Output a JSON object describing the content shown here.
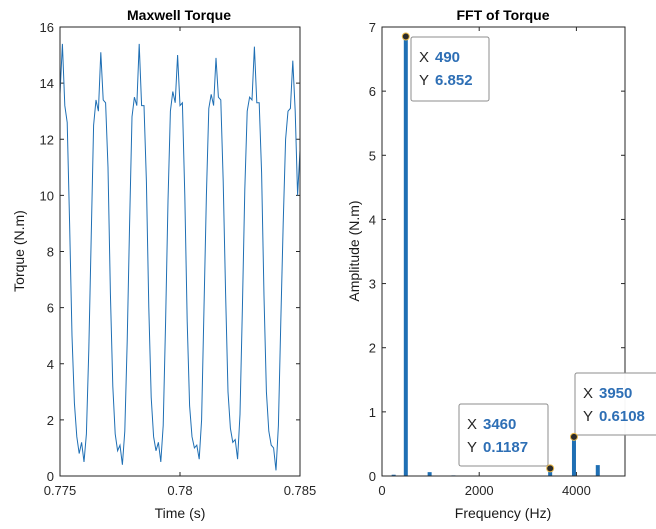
{
  "chart_data": [
    {
      "type": "line",
      "title": "Maxwell Torque",
      "xlabel": "Time (s)",
      "ylabel": "Torque (N.m)",
      "xlim": [
        0.775,
        0.785
      ],
      "ylim": [
        0,
        16
      ],
      "x_ticks": [
        0.775,
        0.78,
        0.785
      ],
      "y_ticks": [
        0,
        2,
        4,
        6,
        8,
        10,
        12,
        14,
        16
      ],
      "x_tick_labels": [
        "0.775",
        "0.78",
        "0.785"
      ],
      "y_tick_labels": [
        "0",
        "2",
        "4",
        "6",
        "8",
        "10",
        "12",
        "14",
        "16"
      ],
      "series_color": "#1f6fb4",
      "series": [
        {
          "x": [
            0.775,
            0.7751,
            0.7752,
            0.7753,
            0.7754,
            0.7755,
            0.7756,
            0.7757,
            0.7758,
            0.7759,
            0.776,
            0.7761,
            0.7762,
            0.7763,
            0.7764,
            0.7765,
            0.7766,
            0.7767,
            0.7768,
            0.7769,
            0.777,
            0.7771,
            0.7772,
            0.7773,
            0.7774,
            0.7775,
            0.7776,
            0.7777,
            0.7778,
            0.7779,
            0.778,
            0.7781,
            0.7782,
            0.7783,
            0.7784,
            0.7785,
            0.7786,
            0.7787,
            0.7788,
            0.7789,
            0.779,
            0.7791,
            0.7792,
            0.7793,
            0.7794,
            0.7795,
            0.7796,
            0.7797,
            0.7798,
            0.7799,
            0.78,
            0.7801,
            0.7802,
            0.7803,
            0.7804,
            0.7805,
            0.7806,
            0.7807,
            0.7808,
            0.7809,
            0.781,
            0.7811,
            0.7812,
            0.7813,
            0.7814,
            0.7815,
            0.7816,
            0.7817,
            0.7818,
            0.7819,
            0.782,
            0.7821,
            0.7822,
            0.7823,
            0.7824,
            0.7825,
            0.7826,
            0.7827,
            0.7828,
            0.7829,
            0.783,
            0.7831,
            0.7832,
            0.7833,
            0.7834,
            0.7835,
            0.7836,
            0.7837,
            0.7838,
            0.7839,
            0.784,
            0.7841,
            0.7842,
            0.7843,
            0.7844,
            0.7845,
            0.7846,
            0.7847,
            0.7848,
            0.7849,
            0.785
          ],
          "y": [
            13.6,
            15.4,
            13.2,
            12.6,
            9.0,
            5.0,
            2.6,
            1.4,
            0.8,
            1.2,
            0.5,
            1.5,
            4.5,
            8.5,
            12.5,
            13.4,
            13.0,
            15.1,
            13.4,
            13.3,
            11.0,
            6.5,
            3.2,
            1.5,
            0.9,
            1.1,
            0.4,
            1.6,
            4.8,
            9.0,
            12.8,
            13.5,
            13.2,
            15.4,
            13.2,
            13.2,
            10.5,
            6.0,
            2.8,
            1.4,
            0.9,
            1.2,
            0.5,
            1.8,
            5.5,
            9.8,
            13.0,
            13.7,
            13.3,
            15.0,
            13.2,
            13.3,
            10.0,
            5.5,
            2.5,
            1.4,
            1.0,
            1.1,
            0.6,
            2.0,
            6.0,
            10.0,
            13.1,
            13.6,
            13.2,
            14.9,
            13.5,
            13.4,
            10.5,
            6.5,
            3.0,
            1.7,
            1.2,
            1.3,
            0.6,
            2.2,
            6.0,
            10.2,
            13.0,
            13.5,
            13.4,
            15.3,
            13.3,
            13.3,
            10.8,
            6.4,
            3.0,
            1.6,
            1.1,
            1.0,
            0.2,
            1.8,
            5.5,
            9.0,
            12.0,
            13.0,
            13.1,
            14.8,
            13.0,
            10.0,
            11.6
          ]
        }
      ]
    },
    {
      "type": "bar",
      "title": "FFT of Torque",
      "xlabel": "Frequency (Hz)",
      "ylabel": "Amplitude (N.m)",
      "xlim": [
        0,
        5000
      ],
      "ylim": [
        0,
        7
      ],
      "x_ticks": [
        0,
        2000,
        4000
      ],
      "y_ticks": [
        0,
        1,
        2,
        3,
        4,
        5,
        6,
        7
      ],
      "x_tick_labels": [
        "0",
        "2000",
        "4000"
      ],
      "y_tick_labels": [
        "0",
        "1",
        "2",
        "3",
        "4",
        "5",
        "6",
        "7"
      ],
      "series_color": "#1f6fb4",
      "series": [
        {
          "x": [
            240,
            490,
            980,
            1470,
            3460,
            3950,
            4440
          ],
          "values": [
            0.02,
            6.852,
            0.06,
            0.01,
            0.1187,
            0.6108,
            0.17
          ]
        }
      ],
      "datatips": [
        {
          "x_label": "X",
          "y_label": "Y",
          "x_value": "490",
          "y_value": "6.852",
          "x": 490,
          "y": 6.852
        },
        {
          "x_label": "X",
          "y_label": "Y",
          "x_value": "3460",
          "y_value": "0.1187",
          "x": 3460,
          "y": 0.1187
        },
        {
          "x_label": "X",
          "y_label": "Y",
          "x_value": "3950",
          "y_value": "0.6108",
          "x": 3950,
          "y": 0.6108
        }
      ]
    }
  ]
}
